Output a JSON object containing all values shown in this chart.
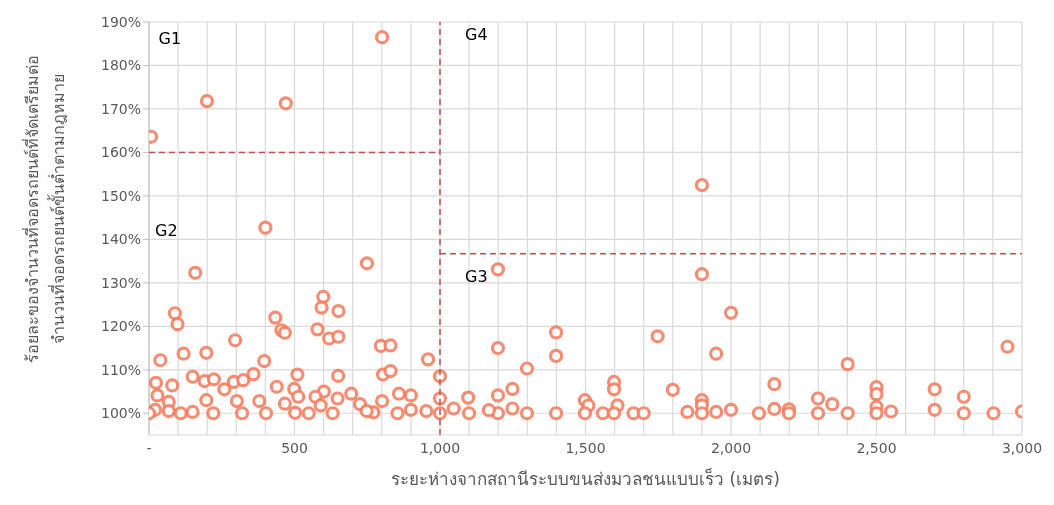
{
  "chart_data": {
    "type": "scatter",
    "xlabel": "ระยะห่างจากสถานีระบบขนส่งมวลชนแบบเร็ว (เมตร)",
    "ylabel": "ร้อยละของจำนวนที่จอดรถยนต์ที่จัดเตรียมต่อ\nจำนวนที่จอดรถยนต์ขั้นต่ำตามกฎหมาย",
    "xlim": [
      0,
      3000
    ],
    "ylim": [
      95,
      190
    ],
    "xticks": [
      {
        "value": 0,
        "label": "-"
      },
      {
        "value": 100,
        "label": null
      },
      {
        "value": 200,
        "label": null
      },
      {
        "value": 300,
        "label": null
      },
      {
        "value": 400,
        "label": null
      },
      500,
      {
        "value": 600,
        "label": null
      },
      {
        "value": 700,
        "label": null
      },
      {
        "value": 800,
        "label": null
      },
      {
        "value": 900,
        "label": null
      },
      {
        "value": 1000,
        "label": "1,000"
      },
      {
        "value": 1100,
        "label": null
      },
      {
        "value": 1200,
        "label": null
      },
      {
        "value": 1300,
        "label": null
      },
      {
        "value": 1400,
        "label": null
      },
      {
        "value": 1500,
        "label": "1,500"
      },
      {
        "value": 1600,
        "label": null
      },
      {
        "value": 1700,
        "label": null
      },
      {
        "value": 1800,
        "label": null
      },
      {
        "value": 1900,
        "label": null
      },
      {
        "value": 2000,
        "label": "2,000"
      },
      {
        "value": 2100,
        "label": null
      },
      {
        "value": 2200,
        "label": null
      },
      {
        "value": 2300,
        "label": null
      },
      {
        "value": 2400,
        "label": null
      },
      {
        "value": 2500,
        "label": "2,500"
      },
      {
        "value": 2600,
        "label": null
      },
      {
        "value": 2700,
        "label": null
      },
      {
        "value": 2800,
        "label": null
      },
      {
        "value": 2900,
        "label": null
      },
      {
        "value": 3000,
        "label": "3,000"
      }
    ],
    "yticks": [
      {
        "value": 100,
        "label": "100%"
      },
      {
        "value": 110,
        "label": "110%"
      },
      {
        "value": 120,
        "label": "120%"
      },
      {
        "value": 130,
        "label": "130%"
      },
      {
        "value": 140,
        "label": "140%"
      },
      {
        "value": 150,
        "label": "150%"
      },
      {
        "value": 160,
        "label": "160%"
      },
      {
        "value": 170,
        "label": "170%"
      },
      {
        "value": 180,
        "label": "180%"
      },
      {
        "value": 190,
        "label": "190%"
      }
    ],
    "grid": true,
    "marker": "circle",
    "series": [
      {
        "color": "#f4795b",
        "x": [
          7,
          199,
          470,
          801,
          400,
          749,
          159,
          89,
          98,
          599,
          593,
          651,
          434,
          455,
          467,
          579,
          619,
          651,
          296,
          39,
          119,
          197,
          396,
          797,
          830,
          804,
          830,
          959,
          1000,
          150,
          510,
          359,
          650,
          24,
          80,
          191,
          223,
          291,
          259,
          324,
          499,
          439,
          601,
          695,
          859,
          900,
          648,
          801,
          1000,
          29,
          197,
          379,
          302,
          572,
          68,
          953,
          21,
          68,
          150,
          221,
          320,
          402,
          502,
          549,
          631,
          771,
          854,
          1000,
          900,
          590,
          725,
          0,
          109,
          748,
          467,
          513,
          1199,
          1900,
          1900,
          2000,
          1748,
          1399,
          1399,
          1199,
          1949,
          1299,
          1249,
          1598,
          1598,
          1800,
          1097,
          1199,
          1498,
          1510,
          1610,
          1900,
          1900,
          1900,
          2000,
          1949,
          1850,
          1399,
          1498,
          1560,
          1598,
          1665,
          1700,
          1199,
          1299,
          1249,
          1100,
          1047,
          1168,
          2401,
          2950,
          2149,
          2299,
          2348,
          2500,
          2500,
          2500,
          2700,
          2800,
          2149,
          2199,
          2096,
          2199,
          2299,
          2401,
          2500,
          2550,
          2700,
          2800,
          2902,
          3000
        ],
        "values": [
          163.6,
          171.8,
          171.3,
          186.5,
          142.7,
          134.5,
          132.3,
          123.0,
          120.5,
          126.8,
          124.3,
          123.5,
          122.0,
          119.1,
          118.5,
          119.3,
          117.2,
          117.6,
          116.8,
          112.2,
          113.7,
          113.9,
          112.0,
          115.5,
          115.6,
          108.9,
          109.7,
          112.4,
          108.5,
          108.4,
          108.9,
          109.0,
          108.6,
          107.0,
          106.4,
          107.4,
          107.8,
          107.2,
          105.5,
          107.6,
          105.6,
          106.1,
          105.0,
          104.5,
          104.5,
          104.1,
          103.4,
          102.8,
          103.4,
          104.1,
          103.0,
          102.8,
          102.8,
          103.8,
          102.6,
          100.5,
          100.8,
          100.5,
          100.3,
          100.0,
          100.0,
          100.0,
          100.1,
          100.0,
          100.0,
          100.2,
          100.0,
          100.0,
          100.8,
          101.8,
          102.1,
          100.0,
          100.0,
          100.5,
          102.2,
          103.8,
          133.1,
          132.0,
          152.5,
          123.1,
          117.7,
          118.6,
          113.2,
          115.0,
          113.7,
          110.3,
          105.6,
          107.2,
          105.5,
          105.4,
          103.6,
          104.1,
          103.0,
          101.8,
          101.8,
          103.0,
          101.8,
          100.0,
          100.8,
          100.3,
          100.3,
          100.0,
          100.0,
          100.0,
          100.0,
          100.0,
          100.0,
          100.0,
          100.0,
          101.1,
          100.0,
          101.1,
          100.7,
          111.3,
          115.3,
          106.7,
          103.4,
          102.1,
          106.0,
          104.4,
          101.5,
          105.5,
          103.8,
          101.0,
          100.9,
          100.0,
          100.0,
          100.0,
          100.0,
          100.0,
          100.4,
          100.8,
          100.0,
          100.0,
          100.4
        ]
      },
      {
        "type": "line",
        "color": "#c0504d",
        "line_style": "dashed",
        "marker": "none",
        "x": [
          1000,
          1000
        ],
        "values": [
          95,
          190
        ]
      },
      {
        "type": "line",
        "color": "#c0504d",
        "line_style": "dashed",
        "marker": "none",
        "x": [
          0,
          1000
        ],
        "values": [
          160,
          160
        ]
      },
      {
        "type": "line",
        "color": "#c0504d",
        "line_style": "dashed",
        "marker": "none",
        "x": [
          1000,
          3000
        ],
        "values": [
          136.7,
          136.7
        ]
      }
    ],
    "annotations": [
      "G1",
      "G2",
      "G4",
      "G3"
    ]
  }
}
